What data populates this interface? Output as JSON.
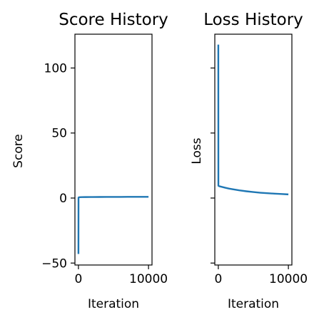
{
  "chart_data": [
    {
      "type": "line",
      "title": "Score History",
      "xlabel": "Iteration",
      "ylabel": "Score",
      "xlim": [
        -500,
        10500
      ],
      "ylim": [
        -51.5,
        126
      ],
      "xticks": [
        {
          "value": 0,
          "label": "0"
        },
        {
          "value": 10000,
          "label": "10000"
        }
      ],
      "yticks": [
        {
          "value": -50,
          "label": "−50"
        },
        {
          "value": 0,
          "label": "0"
        },
        {
          "value": 50,
          "label": "50"
        },
        {
          "value": 100,
          "label": "100"
        }
      ],
      "grid": false,
      "series": [
        {
          "color": "#1f77b4",
          "x": [
            0,
            10,
            20,
            50,
            100,
            200,
            500,
            1000,
            2000,
            3000,
            4000,
            5000,
            6000,
            7000,
            8000,
            9000,
            10000
          ],
          "y": [
            -43,
            0.2,
            0.4,
            0.5,
            0.6,
            0.65,
            0.7,
            0.75,
            0.8,
            0.82,
            0.84,
            0.86,
            0.88,
            0.9,
            0.9,
            0.92,
            0.92
          ]
        }
      ]
    },
    {
      "type": "line",
      "title": "Loss History",
      "xlabel": "Iteration",
      "ylabel": "Loss",
      "xlim": [
        -500,
        10500
      ],
      "ylim": [
        -51.5,
        126
      ],
      "xticks": [
        {
          "value": 0,
          "label": "0"
        },
        {
          "value": 10000,
          "label": "10000"
        }
      ],
      "yticks": [
        {
          "value": -50,
          "label": ""
        },
        {
          "value": 0,
          "label": ""
        },
        {
          "value": 50,
          "label": ""
        },
        {
          "value": 100,
          "label": ""
        }
      ],
      "grid": false,
      "series": [
        {
          "color": "#1f77b4",
          "x": [
            0,
            10,
            20,
            50,
            100,
            200,
            500,
            1000,
            1500,
            2000,
            3000,
            4000,
            5000,
            6000,
            7000,
            8000,
            9000,
            10000
          ],
          "y": [
            118,
            9.5,
            9.4,
            9.3,
            9.2,
            9.0,
            8.6,
            7.9,
            7.3,
            6.8,
            5.9,
            5.2,
            4.6,
            4.1,
            3.7,
            3.4,
            3.1,
            2.8
          ]
        }
      ]
    }
  ]
}
